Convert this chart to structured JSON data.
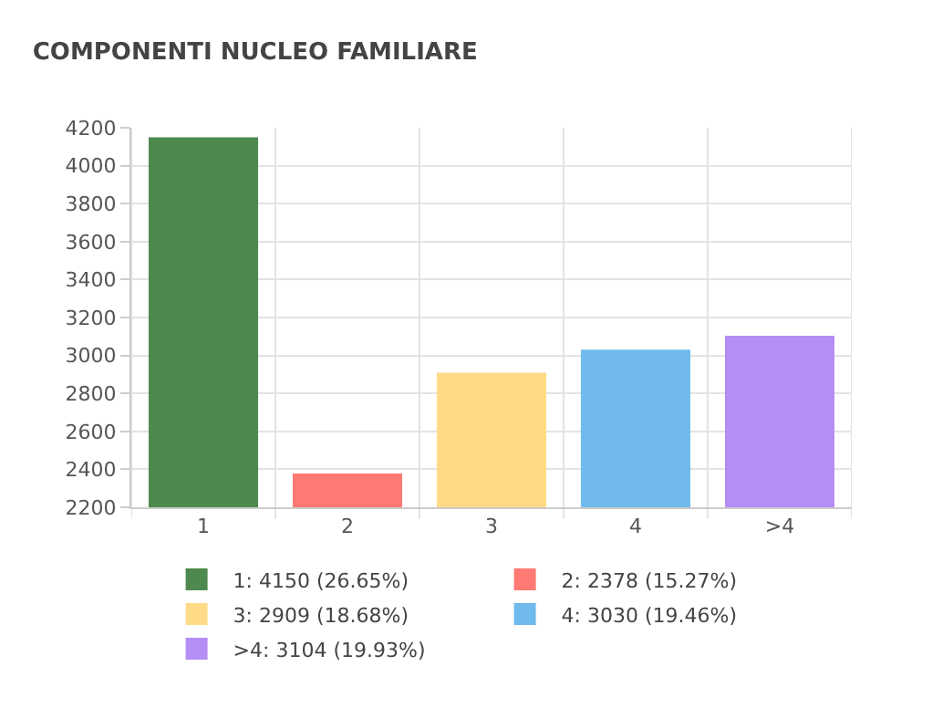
{
  "chart_data": {
    "type": "bar",
    "title": "COMPONENTI NUCLEO FAMILIARE",
    "categories": [
      "1",
      "2",
      "3",
      "4",
      ">4"
    ],
    "series": [
      {
        "name": "1: 4150 (26.65%)",
        "color": "#4e8a4e",
        "values": [
          4150,
          null,
          null,
          null,
          null
        ]
      },
      {
        "name": "2: 2378 (15.27%)",
        "color": "#ff7a73",
        "values": [
          null,
          2378,
          null,
          null,
          null
        ]
      },
      {
        "name": "3: 2909 (18.68%)",
        "color": "#ffdb87",
        "values": [
          null,
          null,
          2909,
          null,
          null
        ]
      },
      {
        "name": "4: 3030 (19.46%)",
        "color": "#70baed",
        "values": [
          null,
          null,
          null,
          3030,
          null
        ]
      },
      {
        "name": ">4: 3104 (19.93%)",
        "color": "#b48df5",
        "values": [
          null,
          null,
          null,
          null,
          3104
        ]
      }
    ],
    "ylim": [
      2200,
      4200
    ],
    "yticks": [
      2200,
      2400,
      2600,
      2800,
      3000,
      3200,
      3400,
      3600,
      3800,
      4000,
      4200
    ],
    "grid": true,
    "legend": "bottom"
  }
}
